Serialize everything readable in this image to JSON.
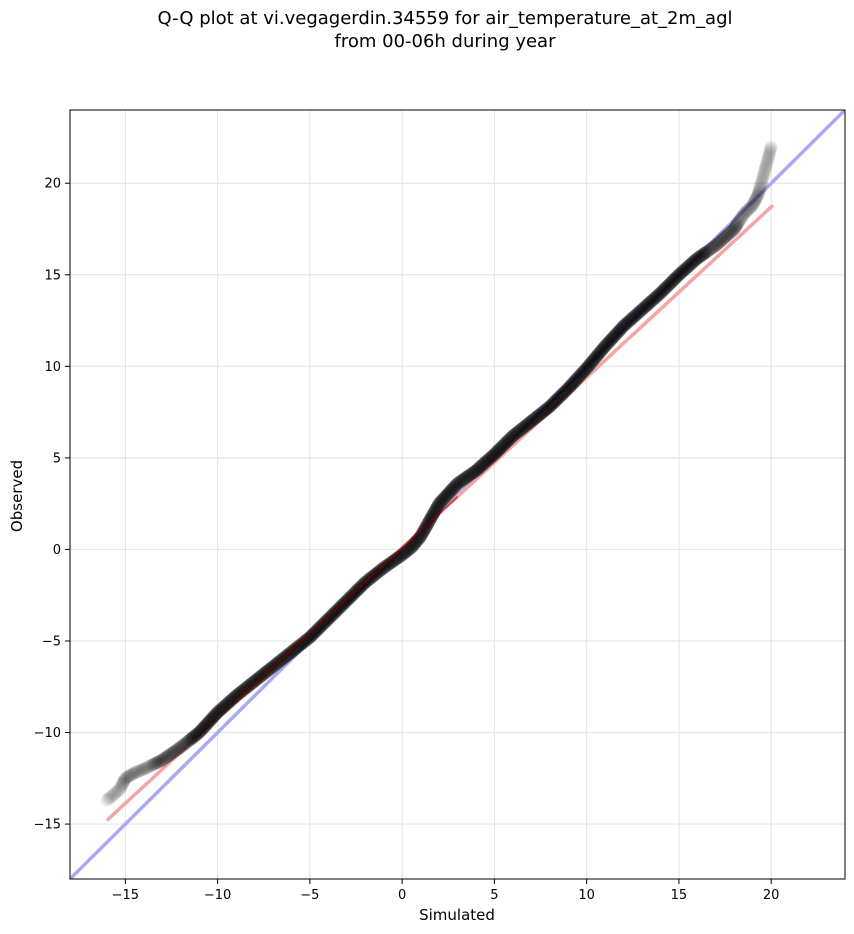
{
  "chart_data": {
    "type": "scatter",
    "title_lines": [
      "Q-Q plot at vi.vegagerdin.34559 for air_temperature_at_2m_agl",
      "from 00-06h during year"
    ],
    "xlabel": "Simulated",
    "ylabel": "Observed",
    "xlim": [
      -18,
      24
    ],
    "ylim": [
      -18,
      24
    ],
    "xticks": [
      -15,
      -10,
      -5,
      0,
      5,
      10,
      15,
      20
    ],
    "yticks": [
      -15,
      -10,
      -5,
      0,
      5,
      10,
      15,
      20
    ],
    "grid": true,
    "colors": {
      "identity_line": "#aaaaf2",
      "fit_line": "#f4a6a6",
      "points": "#000000",
      "grid": "#e6e6e6"
    },
    "identity_line": {
      "x": [
        -18,
        24
      ],
      "y": [
        -18,
        24
      ]
    },
    "fit_line": {
      "x": [
        -16,
        20.1
      ],
      "y": [
        -14.8,
        18.8
      ],
      "inner_color": "#8b0000",
      "inner_x": [
        -9,
        3
      ]
    },
    "quantile_curve": {
      "x": [
        -16.0,
        -15.3,
        -15.0,
        -14.5,
        -14.0,
        -13.0,
        -12.0,
        -11.0,
        -10.0,
        -9.0,
        -8.0,
        -7.0,
        -6.0,
        -5.0,
        -4.0,
        -3.0,
        -2.0,
        -1.0,
        0.0,
        0.5,
        1.0,
        1.5,
        2.0,
        3.0,
        4.0,
        5.0,
        6.0,
        7.0,
        8.0,
        9.0,
        10.0,
        11.0,
        12.0,
        13.0,
        14.0,
        15.0,
        16.0,
        17.0,
        18.0,
        18.5,
        19.0,
        19.3,
        19.6,
        20.0
      ],
      "y": [
        -13.7,
        -13.1,
        -12.5,
        -12.2,
        -12.0,
        -11.5,
        -10.8,
        -10.0,
        -8.9,
        -8.0,
        -7.2,
        -6.4,
        -5.6,
        -4.8,
        -3.8,
        -2.8,
        -1.8,
        -1.0,
        -0.3,
        0.1,
        0.7,
        1.6,
        2.5,
        3.6,
        4.3,
        5.2,
        6.2,
        7.0,
        7.8,
        8.8,
        9.9,
        11.1,
        12.2,
        13.1,
        14.0,
        15.0,
        15.9,
        16.6,
        17.5,
        18.3,
        18.8,
        19.4,
        20.5,
        22.0
      ]
    }
  }
}
